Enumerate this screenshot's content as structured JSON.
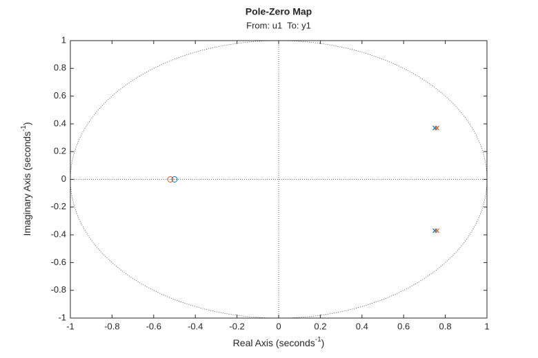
{
  "chart_data": {
    "type": "pole-zero",
    "title": "Pole-Zero Map",
    "subtitle": "From: u1  To: y1",
    "x_label": {
      "text": "Real Axis (seconds",
      "sup": "-1",
      "end": ")"
    },
    "y_label": {
      "text": "Imaginary Axis (seconds",
      "sup": "-1",
      "end": ")"
    },
    "xlim": [
      -1,
      1
    ],
    "ylim": [
      -1,
      1
    ],
    "xticks": [
      -1,
      -0.8,
      -0.6,
      -0.4,
      -0.2,
      0,
      0.2,
      0.4,
      0.6,
      0.8,
      1
    ],
    "yticks": [
      -1,
      -0.8,
      -0.6,
      -0.4,
      -0.2,
      0,
      0.2,
      0.4,
      0.6,
      0.8,
      1
    ],
    "unit_circle": true,
    "series": [
      {
        "color": "#0072bd",
        "poles": {
          "real": [
            0.75,
            0.75
          ],
          "imag": [
            0.37,
            -0.37
          ]
        },
        "zeros": {
          "real": [
            -0.5
          ],
          "imag": [
            0
          ]
        }
      },
      {
        "color": "#d95319",
        "poles": {
          "real": [
            0.76,
            0.76
          ],
          "imag": [
            0.37,
            -0.37
          ]
        },
        "zeros": {
          "real": [
            -0.52
          ],
          "imag": [
            0
          ]
        }
      }
    ]
  }
}
